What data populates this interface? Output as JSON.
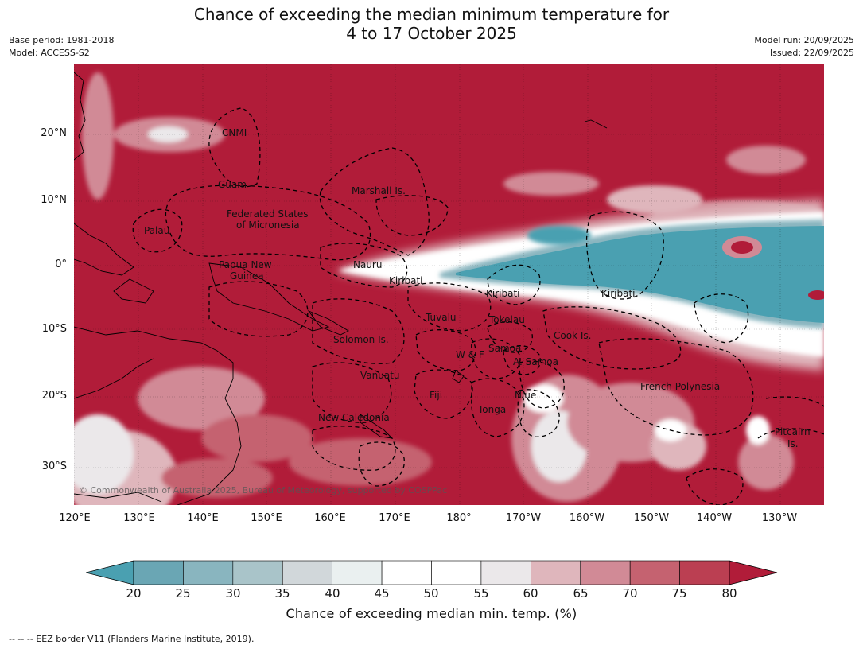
{
  "title_line1": "Chance of exceeding the median minimum temperature for",
  "title_line2": "4 to 17 October 2025",
  "base_period": "Base period: 1981-2018",
  "model": "Model: ACCESS-S2",
  "model_run": "Model run: 20/09/2025",
  "issued": "Issued: 22/09/2025",
  "lat_labels": [
    "20°N",
    "10°N",
    "0°",
    "10°S",
    "20°S",
    "30°S"
  ],
  "lon_labels": [
    "120°E",
    "130°E",
    "140°E",
    "150°E",
    "160°E",
    "170°E",
    "180°",
    "170°W",
    "160°W",
    "150°W",
    "140°W",
    "130°W"
  ],
  "regions": {
    "cnmi": "CNMI",
    "guam": "Guam",
    "marshall": "Marshall Is.",
    "fsm_1": "Federated States",
    "fsm_2": "of Micronesia",
    "palau": "Palau",
    "nauru": "Nauru",
    "png_1": "Papua New",
    "png_2": "Guinea",
    "kiribati_west": "Kiribati",
    "kiribati_central": "Kiribati",
    "kiribati_east": "Kiribati",
    "tuvalu": "Tuvalu",
    "tokelau": "Tokelau",
    "cook": "Cook Is.",
    "solomon": "Solomon Is.",
    "samoa": "Samoa",
    "wf": "W & F",
    "asamoa": "A. Samoa",
    "vanuatu": "Vanuatu",
    "fiji": "Fiji",
    "niue": "Niue",
    "tonga": "Tonga",
    "french_polynesia": "French Polynesia",
    "new_caledonia": "New Caledonia",
    "pitcairn_1": "Pitcairn",
    "pitcairn_2": "Is."
  },
  "copyright": "© Commonwealth of Australia 2025, Bureau of Meteorology, supported by COSPPac",
  "colorbar": {
    "ticks": [
      "20",
      "25",
      "30",
      "35",
      "40",
      "45",
      "50",
      "55",
      "60",
      "65",
      "70",
      "75",
      "80"
    ],
    "colors": [
      "#6aa6b4",
      "#89b5bf",
      "#a9c4c9",
      "#d1d7da",
      "#eaf0f0",
      "#ffffff",
      "#ffffff",
      "#ebe8ea",
      "#dfb6bc",
      "#d18a96",
      "#c56270",
      "#bb3f52"
    ],
    "under_color": "#4aa0b1",
    "over_color": "#b11c39",
    "label": "Chance of exceeding median min. temp. (%)"
  },
  "footnote": "--  --  -- EEZ border V11 (Flanders Marine Institute, 2019)."
}
